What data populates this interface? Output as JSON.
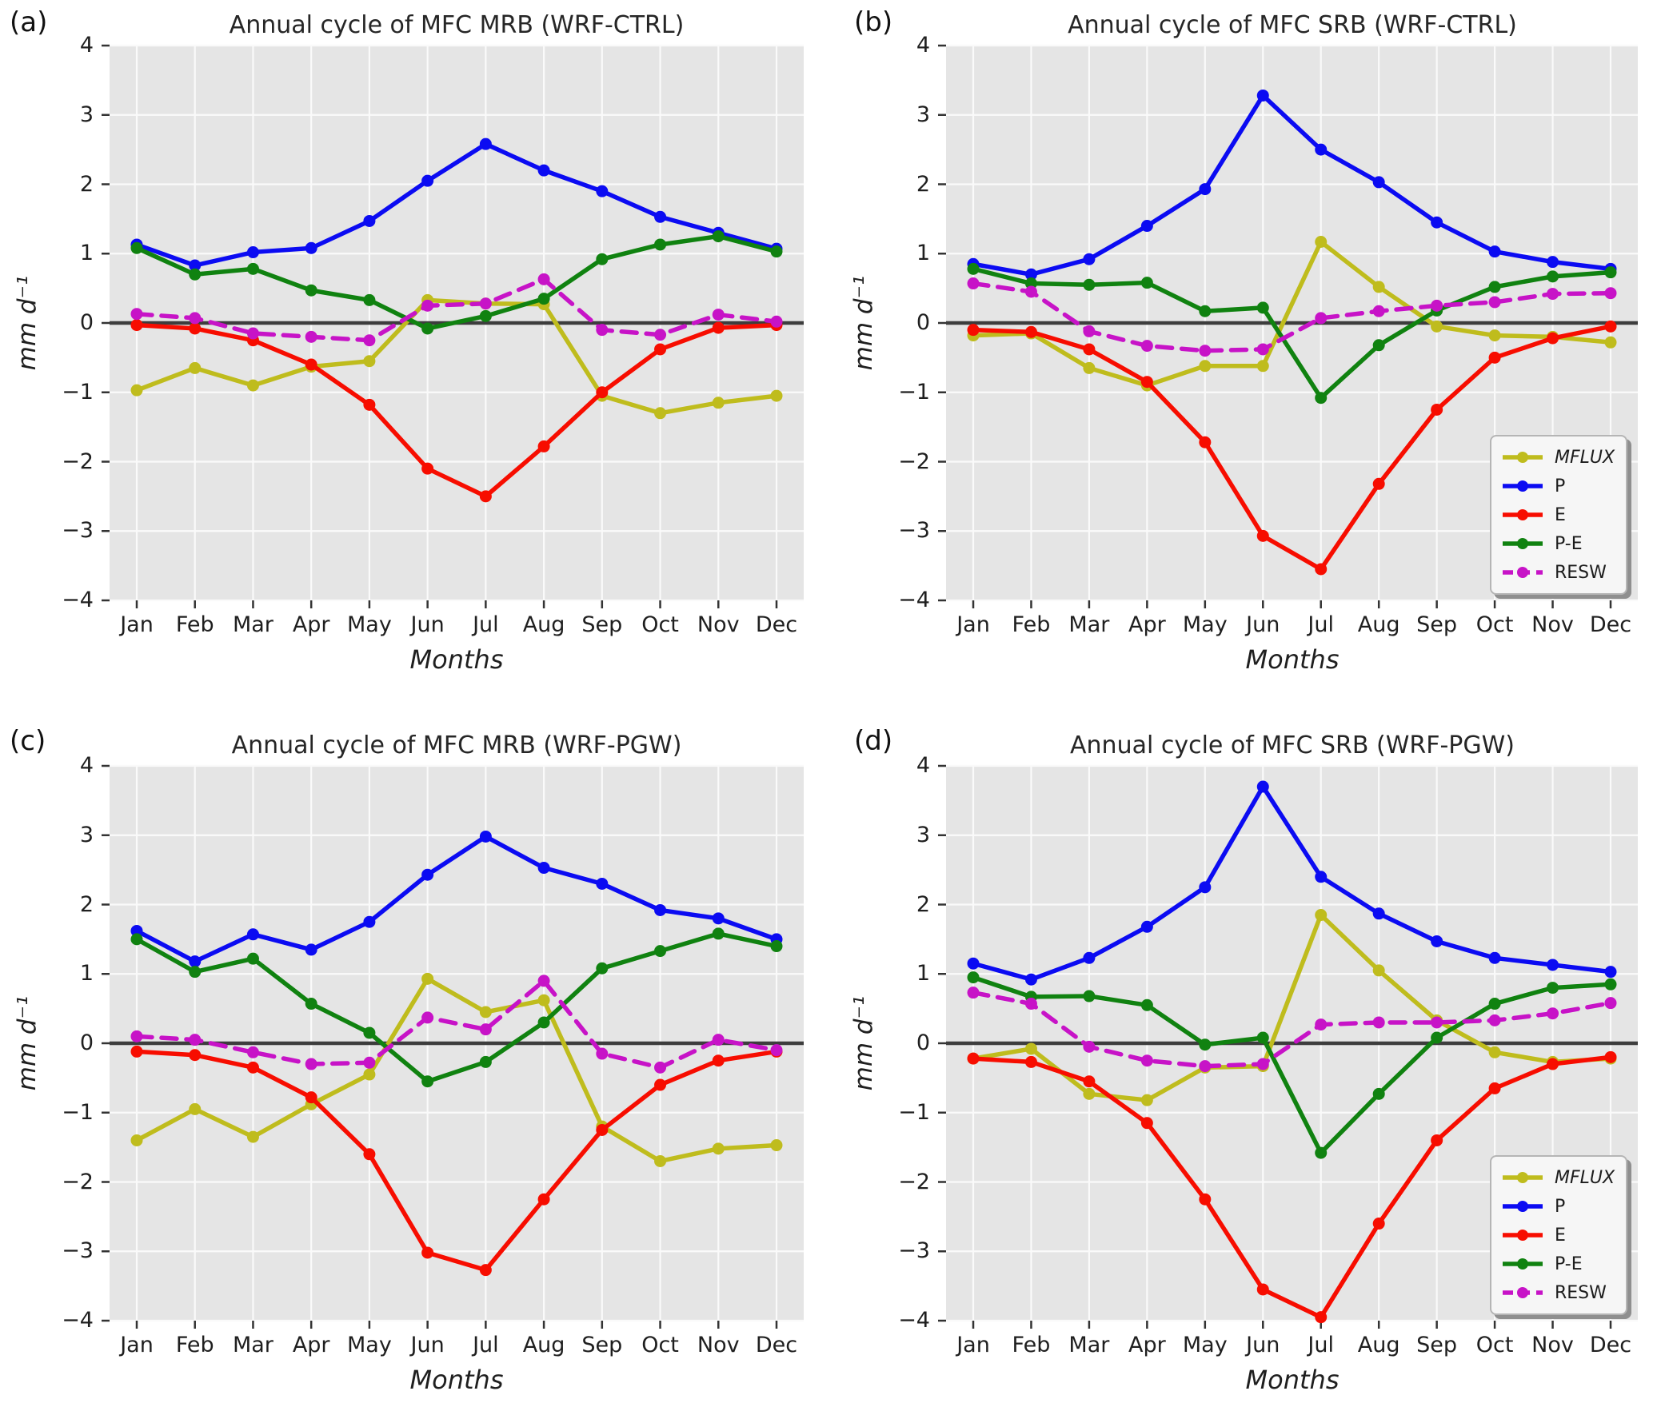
{
  "palette": {
    "MFLUX": "#bfbc1d",
    "P": "#0b0bf2",
    "E": "#f70d00",
    "P-E": "#108210",
    "RESW": "#c713c7"
  },
  "style_colors": {
    "plot_background": "#e5e5e5",
    "grid": "#fafafa",
    "zero_line": "#3d3d3d",
    "tick": "#333333",
    "text": "#1f1f1f"
  },
  "months": [
    "Jan",
    "Feb",
    "Mar",
    "Apr",
    "May",
    "Jun",
    "Jul",
    "Aug",
    "Sep",
    "Oct",
    "Nov",
    "Dec"
  ],
  "ytick_values": [
    4,
    3,
    2,
    1,
    0,
    -1,
    -2,
    -3,
    -4
  ],
  "ytick_labels": [
    "4",
    "3",
    "2",
    "1",
    "0",
    "−1",
    "−2",
    "−3",
    "−4"
  ],
  "legend_entries": [
    {
      "label": "MFLUX",
      "italic": true
    },
    {
      "label": "P",
      "italic": false
    },
    {
      "label": "E",
      "italic": false
    },
    {
      "label": "P-E",
      "italic": false
    },
    {
      "label": "RESW",
      "italic": false
    }
  ],
  "chart_data": [
    {
      "panel_label": "(a)",
      "title": "Annual cycle of MFC MRB (WRF-CTRL)",
      "type": "line",
      "xlabel": "Months",
      "ylabel": "mm d⁻¹",
      "ylim": [
        -4,
        4
      ],
      "grid": true,
      "legend": false,
      "series": [
        {
          "name": "MFLUX",
          "values": [
            -0.97,
            -0.65,
            -0.9,
            -0.63,
            -0.55,
            0.33,
            0.28,
            0.27,
            -1.05,
            -1.3,
            -1.15,
            -1.05
          ]
        },
        {
          "name": "P",
          "values": [
            1.13,
            0.83,
            1.02,
            1.08,
            1.47,
            2.05,
            2.58,
            2.2,
            1.9,
            1.53,
            1.3,
            1.07
          ]
        },
        {
          "name": "E",
          "values": [
            -0.03,
            -0.08,
            -0.25,
            -0.6,
            -1.18,
            -2.1,
            -2.5,
            -1.78,
            -1.0,
            -0.38,
            -0.07,
            -0.03
          ]
        },
        {
          "name": "P-E",
          "values": [
            1.08,
            0.7,
            0.78,
            0.47,
            0.33,
            -0.08,
            0.1,
            0.35,
            0.92,
            1.13,
            1.25,
            1.03
          ]
        },
        {
          "name": "RESW",
          "values": [
            0.13,
            0.07,
            -0.15,
            -0.2,
            -0.25,
            0.25,
            0.28,
            0.63,
            -0.1,
            -0.17,
            0.12,
            0.02
          ]
        }
      ]
    },
    {
      "panel_label": "(b)",
      "title": "Annual cycle of MFC SRB (WRF-CTRL)",
      "type": "line",
      "xlabel": "Months",
      "ylabel": "mm d⁻¹",
      "ylim": [
        -4,
        4
      ],
      "grid": true,
      "legend": true,
      "series": [
        {
          "name": "MFLUX",
          "values": [
            -0.18,
            -0.15,
            -0.65,
            -0.9,
            -0.62,
            -0.62,
            1.17,
            0.52,
            -0.05,
            -0.18,
            -0.2,
            -0.28
          ]
        },
        {
          "name": "P",
          "values": [
            0.85,
            0.7,
            0.92,
            1.4,
            1.93,
            3.28,
            2.5,
            2.03,
            1.45,
            1.03,
            0.88,
            0.78
          ]
        },
        {
          "name": "E",
          "values": [
            -0.1,
            -0.13,
            -0.38,
            -0.85,
            -1.72,
            -3.07,
            -3.55,
            -2.32,
            -1.25,
            -0.5,
            -0.22,
            -0.05
          ]
        },
        {
          "name": "P-E",
          "values": [
            0.78,
            0.57,
            0.55,
            0.58,
            0.17,
            0.22,
            -1.08,
            -0.32,
            0.18,
            0.52,
            0.67,
            0.73
          ]
        },
        {
          "name": "RESW",
          "values": [
            0.57,
            0.45,
            -0.12,
            -0.33,
            -0.4,
            -0.38,
            0.07,
            0.17,
            0.25,
            0.3,
            0.42,
            0.43
          ]
        }
      ]
    },
    {
      "panel_label": "(c)",
      "title": "Annual cycle of MFC MRB (WRF-PGW)",
      "type": "line",
      "xlabel": "Months",
      "ylabel": "mm d⁻¹",
      "ylim": [
        -4,
        4
      ],
      "grid": true,
      "legend": false,
      "series": [
        {
          "name": "MFLUX",
          "values": [
            -1.4,
            -0.95,
            -1.35,
            -0.88,
            -0.45,
            0.93,
            0.45,
            0.62,
            -1.2,
            -1.7,
            -1.52,
            -1.47
          ]
        },
        {
          "name": "P",
          "values": [
            1.62,
            1.18,
            1.57,
            1.35,
            1.75,
            2.43,
            2.98,
            2.53,
            2.3,
            1.92,
            1.8,
            1.5
          ]
        },
        {
          "name": "E",
          "values": [
            -0.12,
            -0.17,
            -0.35,
            -0.78,
            -1.6,
            -3.02,
            -3.27,
            -2.25,
            -1.25,
            -0.6,
            -0.25,
            -0.12
          ]
        },
        {
          "name": "P-E",
          "values": [
            1.5,
            1.03,
            1.22,
            0.57,
            0.15,
            -0.55,
            -0.27,
            0.3,
            1.08,
            1.33,
            1.58,
            1.4
          ]
        },
        {
          "name": "RESW",
          "values": [
            0.1,
            0.05,
            -0.13,
            -0.3,
            -0.28,
            0.37,
            0.2,
            0.9,
            -0.15,
            -0.35,
            0.05,
            -0.1
          ]
        }
      ]
    },
    {
      "panel_label": "(d)",
      "title": "Annual cycle of MFC SRB (WRF-PGW)",
      "type": "line",
      "xlabel": "Months",
      "ylabel": "mm d⁻¹",
      "ylim": [
        -4,
        4
      ],
      "grid": true,
      "legend": true,
      "series": [
        {
          "name": "MFLUX",
          "values": [
            -0.22,
            -0.08,
            -0.73,
            -0.82,
            -0.35,
            -0.33,
            1.85,
            1.05,
            0.33,
            -0.13,
            -0.27,
            -0.22
          ]
        },
        {
          "name": "P",
          "values": [
            1.15,
            0.92,
            1.23,
            1.68,
            2.25,
            3.7,
            2.4,
            1.87,
            1.47,
            1.23,
            1.13,
            1.03
          ]
        },
        {
          "name": "E",
          "values": [
            -0.22,
            -0.27,
            -0.55,
            -1.15,
            -2.25,
            -3.55,
            -3.95,
            -2.6,
            -1.4,
            -0.65,
            -0.3,
            -0.2
          ]
        },
        {
          "name": "P-E",
          "values": [
            0.95,
            0.67,
            0.68,
            0.55,
            -0.02,
            0.08,
            -1.58,
            -0.73,
            0.08,
            0.57,
            0.8,
            0.85
          ]
        },
        {
          "name": "RESW",
          "values": [
            0.73,
            0.57,
            -0.05,
            -0.25,
            -0.33,
            -0.3,
            0.27,
            0.3,
            0.3,
            0.33,
            0.43,
            0.58
          ]
        }
      ]
    }
  ]
}
